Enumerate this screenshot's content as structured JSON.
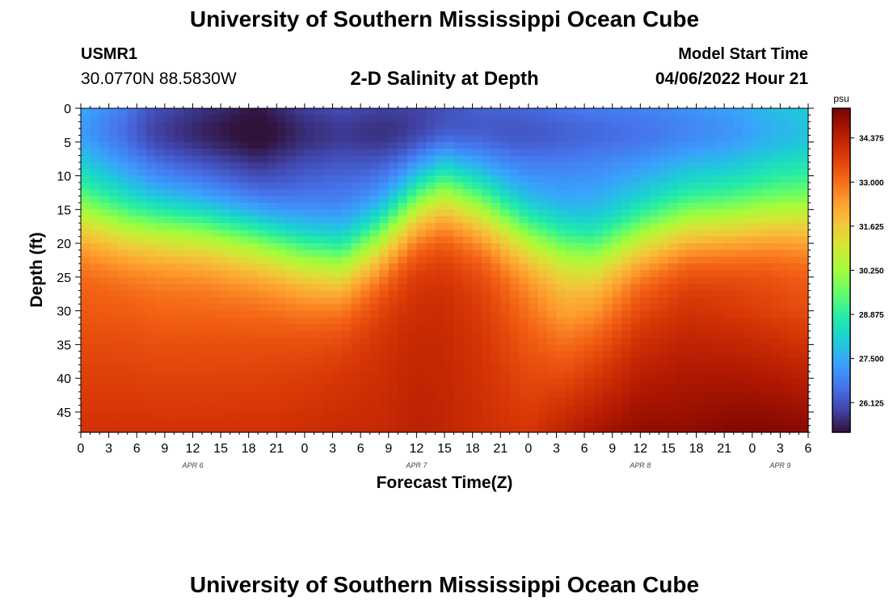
{
  "header": {
    "title": "University of Southern Mississippi Ocean Cube",
    "station_id": "USMR1",
    "station_coords": "30.0770N  88.5830W",
    "plot_title": "2-D Salinity at Depth",
    "model_start_label": "Model Start Time",
    "model_start_value": "04/06/2022 Hour 21"
  },
  "footer": {
    "title": "University of Southern Mississippi Ocean Cube"
  },
  "chart_data": {
    "type": "heatmap",
    "title": "2-D Salinity at Depth",
    "xlabel": "Forecast Time(Z)",
    "ylabel": "Depth (ft)",
    "x_hours": [
      0,
      78
    ],
    "xlim": [
      0,
      78
    ],
    "ylim": [
      0,
      48
    ],
    "y_ticks": [
      "0",
      "5",
      "10",
      "15",
      "20",
      "25",
      "30",
      "35",
      "40",
      "45"
    ],
    "x_ticks": [
      "0",
      "3",
      "6",
      "9",
      "12",
      "15",
      "18",
      "21",
      "0",
      "3",
      "6",
      "9",
      "12",
      "15",
      "18",
      "21",
      "0",
      "3",
      "6",
      "9",
      "12",
      "15",
      "18",
      "21",
      "0",
      "3",
      "6"
    ],
    "date_labels": [
      {
        "label": "APR 6",
        "hour": 12
      },
      {
        "label": "APR 7",
        "hour": 36
      },
      {
        "label": "APR 8",
        "hour": 60
      },
      {
        "label": "APR 9",
        "hour": 75
      }
    ],
    "colorbar": {
      "unit": "psu",
      "range": [
        25.2,
        35.3
      ],
      "ticks": [
        "26.125",
        "27.500",
        "28.875",
        "30.250",
        "31.625",
        "33.000",
        "34.375"
      ],
      "colors": [
        "#30123b",
        "#4145ab",
        "#4675ed",
        "#39a2fc",
        "#1bcfd4",
        "#24eca6",
        "#61fc6c",
        "#a4fc3b",
        "#d1e834",
        "#f3c63a",
        "#fe9b2d",
        "#f36315",
        "#d93806",
        "#b11901",
        "#7a0402"
      ]
    },
    "salinity_profiles": [
      {
        "hour": 0,
        "surface": 27.6,
        "halocline_depth": 15.5,
        "width": 3.6,
        "deep": 33.4,
        "bottom": 34.0
      },
      {
        "hour": 5,
        "surface": 26.8,
        "halocline_depth": 17.0,
        "width": 3.6,
        "deep": 33.4,
        "bottom": 34.0
      },
      {
        "hour": 8,
        "surface": 26.2,
        "halocline_depth": 17.0,
        "width": 3.6,
        "deep": 33.3,
        "bottom": 34.0
      },
      {
        "hour": 13,
        "surface": 25.8,
        "halocline_depth": 17.5,
        "width": 3.6,
        "deep": 33.3,
        "bottom": 34.0
      },
      {
        "hour": 19,
        "surface": 25.4,
        "halocline_depth": 19.0,
        "width": 3.8,
        "deep": 33.4,
        "bottom": 34.0
      },
      {
        "hour": 24,
        "surface": 26.0,
        "halocline_depth": 21.5,
        "width": 3.8,
        "deep": 33.5,
        "bottom": 34.1
      },
      {
        "hour": 28,
        "surface": 26.2,
        "halocline_depth": 22.5,
        "width": 3.8,
        "deep": 33.7,
        "bottom": 34.2
      },
      {
        "hour": 32,
        "surface": 26.0,
        "halocline_depth": 19.0,
        "width": 3.8,
        "deep": 34.0,
        "bottom": 34.2
      },
      {
        "hour": 36,
        "surface": 25.9,
        "halocline_depth": 14.0,
        "width": 3.8,
        "deep": 34.2,
        "bottom": 34.4
      },
      {
        "hour": 39,
        "surface": 25.9,
        "halocline_depth": 12.0,
        "width": 4.0,
        "deep": 34.2,
        "bottom": 34.3
      },
      {
        "hour": 43,
        "surface": 26.4,
        "halocline_depth": 14.5,
        "width": 3.8,
        "deep": 33.9,
        "bottom": 34.1
      },
      {
        "hour": 48,
        "surface": 26.6,
        "halocline_depth": 18.5,
        "width": 3.6,
        "deep": 33.2,
        "bottom": 33.9
      },
      {
        "hour": 52,
        "surface": 26.8,
        "halocline_depth": 20.5,
        "width": 3.6,
        "deep": 32.6,
        "bottom": 34.4
      },
      {
        "hour": 55,
        "surface": 26.9,
        "halocline_depth": 21.5,
        "width": 3.8,
        "deep": 33.0,
        "bottom": 34.7
      },
      {
        "hour": 60,
        "surface": 27.0,
        "halocline_depth": 19.0,
        "width": 3.8,
        "deep": 33.9,
        "bottom": 35.0
      },
      {
        "hour": 65,
        "surface": 27.2,
        "halocline_depth": 17.0,
        "width": 3.8,
        "deep": 34.2,
        "bottom": 35.0
      },
      {
        "hour": 70,
        "surface": 27.5,
        "halocline_depth": 16.5,
        "width": 3.6,
        "deep": 34.0,
        "bottom": 35.2
      },
      {
        "hour": 74,
        "surface": 27.9,
        "halocline_depth": 16.0,
        "width": 3.6,
        "deep": 33.8,
        "bottom": 35.2
      },
      {
        "hour": 78,
        "surface": 28.2,
        "halocline_depth": 16.0,
        "width": 3.6,
        "deep": 33.6,
        "bottom": 35.1
      }
    ]
  }
}
